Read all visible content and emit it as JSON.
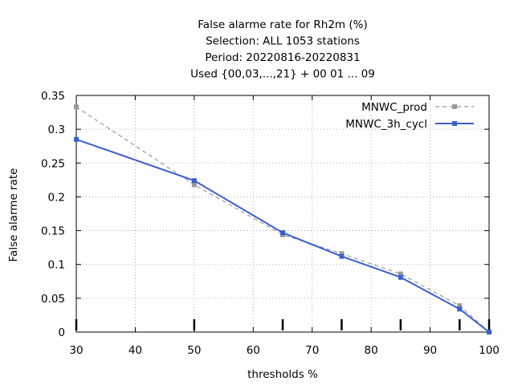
{
  "chart_data": {
    "type": "line",
    "title": [
      "False alarme rate  for Rh2m (%)",
      "Selection: ALL    1053 stations",
      "Period: 20220816-20220831",
      "Used {00,03,...,21} + 00 01 ... 09"
    ],
    "xlabel": "thresholds %",
    "ylabel": "False alarme rate",
    "xlim": [
      30,
      100
    ],
    "ylim": [
      0,
      0.35
    ],
    "xticks": [
      30,
      40,
      50,
      60,
      70,
      80,
      90,
      100
    ],
    "xtick_labels": [
      "30",
      "40",
      "50",
      "60",
      "70",
      "80",
      "90",
      "100"
    ],
    "yticks": [
      0,
      0.05,
      0.1,
      0.15,
      0.2,
      0.25,
      0.3,
      0.35
    ],
    "ytick_labels": [
      "0",
      "0.05",
      "0.1",
      "0.15",
      "0.2",
      "0.25",
      "0.3",
      "0.35"
    ],
    "grid": true,
    "legend_position": "top-right",
    "threshold_marks": [
      30,
      50,
      65,
      75,
      85,
      95,
      100
    ],
    "series": [
      {
        "name": "MNWC_prod",
        "color": "#999999",
        "dashed": true,
        "x": [
          30,
          50,
          65,
          75,
          85,
          95,
          100
        ],
        "y": [
          0.333,
          0.218,
          0.144,
          0.116,
          0.086,
          0.039,
          0.0
        ]
      },
      {
        "name": "MNWC_3h_cycl",
        "color": "#3a5fcd",
        "dashed": false,
        "x": [
          30,
          50,
          65,
          75,
          85,
          95,
          100
        ],
        "y": [
          0.285,
          0.224,
          0.147,
          0.112,
          0.081,
          0.034,
          0.0
        ]
      }
    ]
  }
}
